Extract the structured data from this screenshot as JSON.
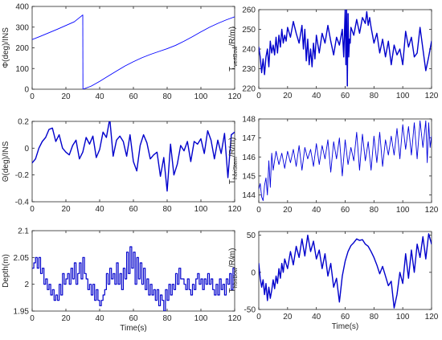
{
  "chart_data": [
    {
      "type": "line",
      "ylabel": "Φ(deg)/INS",
      "xlabel": "",
      "xlim": [
        0,
        120
      ],
      "ylim": [
        0,
        400
      ],
      "xticks": [
        "0",
        "20",
        "40",
        "60",
        "80",
        "100",
        "120"
      ],
      "yticks": [
        "0",
        "100",
        "200",
        "300",
        "400"
      ],
      "color": "#0000ff",
      "line_width": 0.9,
      "series": [
        {
          "x": [
            0,
            5,
            10,
            15,
            20,
            25,
            29.9,
            30,
            30.1,
            35,
            40,
            45,
            50,
            55,
            60,
            65,
            70,
            75,
            80,
            85,
            90,
            95,
            100,
            105,
            110,
            115,
            120
          ],
          "values": [
            240,
            256,
            273,
            290,
            308,
            326,
            358,
            359,
            0,
            15,
            38,
            63,
            88,
            112,
            133,
            152,
            168,
            182,
            196,
            212,
            232,
            254,
            277,
            299,
            318,
            335,
            350
          ]
        }
      ]
    },
    {
      "type": "line",
      "ylabel": "T",
      "ylabel_sub": "vertBow",
      "ylabel_tail": "/R/m)",
      "xlabel": "",
      "xlim": [
        0,
        120
      ],
      "ylim": [
        220,
        260
      ],
      "xticks": [
        "0",
        "20",
        "40",
        "60",
        "80",
        "100",
        "120"
      ],
      "yticks": [
        "220",
        "230",
        "240",
        "250",
        "260"
      ],
      "color": "#0000cc",
      "line_width": 1.4,
      "series": [
        {
          "x": [
            0,
            1,
            2,
            3,
            4,
            5,
            6,
            7,
            8,
            9,
            10,
            11,
            12,
            13,
            14,
            15,
            16,
            17,
            18,
            19,
            20,
            22,
            24,
            26,
            28,
            30,
            31,
            32,
            33,
            34,
            35,
            36,
            37,
            38,
            39,
            40,
            42,
            44,
            46,
            48,
            50,
            52,
            54,
            56,
            58,
            59,
            60,
            60.5,
            61,
            61.5,
            62,
            62.5,
            63,
            63.5,
            64,
            66,
            68,
            70,
            72,
            74,
            75,
            76,
            77,
            78,
            80,
            82,
            84,
            86,
            88,
            90,
            92,
            94,
            96,
            98,
            100,
            102,
            104,
            106,
            108,
            110,
            112,
            114,
            116,
            118,
            120
          ],
          "values": [
            241,
            236,
            228,
            235,
            227,
            236,
            240,
            231,
            244,
            238,
            242,
            237,
            246,
            238,
            247,
            241,
            250,
            243,
            247,
            244,
            251,
            246,
            254,
            248,
            243,
            252,
            240,
            250,
            234,
            245,
            232,
            240,
            231,
            243,
            235,
            247,
            238,
            248,
            243,
            252,
            244,
            237,
            246,
            242,
            250,
            236,
            260,
            232,
            260,
            221,
            258,
            236,
            245,
            243,
            251,
            247,
            255,
            248,
            256,
            253,
            259,
            252,
            256,
            251,
            243,
            248,
            238,
            245,
            236,
            244,
            232,
            242,
            237,
            240,
            232,
            249,
            241,
            246,
            236,
            238,
            251,
            240,
            229,
            236,
            244
          ]
        }
      ]
    },
    {
      "type": "line",
      "ylabel": "Θ(deg)/INS",
      "xlabel": "",
      "xlim": [
        0,
        120
      ],
      "ylim": [
        -0.4,
        0.2
      ],
      "xticks": [
        "0",
        "20",
        "40",
        "60",
        "80",
        "100",
        "120"
      ],
      "yticks": [
        "-0.4",
        "-0.2",
        "0",
        "0.2"
      ],
      "color": "#0000cc",
      "line_width": 1.4,
      "series": [
        {
          "x": [
            0,
            2,
            4,
            6,
            8,
            10,
            12,
            14,
            16,
            18,
            20,
            22,
            24,
            26,
            28,
            30,
            32,
            34,
            36,
            38,
            40,
            42,
            44,
            46,
            48,
            50,
            52,
            54,
            56,
            58,
            60,
            62,
            64,
            66,
            68,
            70,
            72,
            74,
            76,
            78,
            80,
            82,
            84,
            86,
            88,
            90,
            92,
            94,
            96,
            98,
            100,
            102,
            104,
            106,
            108,
            110,
            112,
            114,
            116,
            118,
            120
          ],
          "values": [
            -0.11,
            -0.08,
            0.0,
            0.05,
            0.08,
            0.14,
            0.15,
            0.05,
            0.1,
            0.0,
            -0.03,
            -0.05,
            0.02,
            0.06,
            -0.08,
            -0.03,
            0.08,
            0.03,
            0.09,
            -0.07,
            -0.01,
            0.12,
            0.08,
            0.22,
            -0.06,
            0.06,
            0.09,
            0.05,
            -0.06,
            0.1,
            -0.1,
            -0.17,
            0.02,
            0.1,
            0.04,
            -0.08,
            -0.05,
            -0.03,
            -0.21,
            -0.07,
            -0.32,
            0.03,
            -0.2,
            -0.12,
            0.02,
            -0.02,
            0.05,
            -0.1,
            0.05,
            0.03,
            0.07,
            -0.04,
            0.13,
            0.06,
            -0.08,
            0.06,
            -0.04,
            0.11,
            -0.22,
            0.1,
            0.12
          ]
        }
      ]
    },
    {
      "type": "line",
      "ylabel": "T",
      "ylabel_sub": "horiStem",
      "ylabel_tail": "/R/m)",
      "xlabel": "",
      "xlim": [
        0,
        120
      ],
      "ylim": [
        143.6,
        148
      ],
      "xticks": [
        "0",
        "20",
        "40",
        "60",
        "80",
        "100",
        "120"
      ],
      "yticks": [
        "144",
        "145",
        "146",
        "147",
        "148"
      ],
      "color": "#0000dd",
      "line_width": 0.9,
      "series": [
        {
          "x": [
            0,
            1,
            2,
            3,
            4,
            5,
            6,
            7,
            8,
            9,
            10,
            12,
            14,
            16,
            18,
            20,
            22,
            24,
            26,
            28,
            30,
            32,
            34,
            36,
            38,
            40,
            42,
            44,
            46,
            48,
            50,
            52,
            54,
            56,
            58,
            60,
            62,
            64,
            66,
            68,
            70,
            72,
            74,
            76,
            78,
            80,
            82,
            84,
            86,
            88,
            90,
            92,
            94,
            96,
            98,
            100,
            102,
            104,
            106,
            108,
            110,
            112,
            114,
            116,
            117,
            118,
            119,
            120
          ],
          "values": [
            144.3,
            144.6,
            143.9,
            143.7,
            144.5,
            144.9,
            144.0,
            145.8,
            144.4,
            146.2,
            145.3,
            146.3,
            145.6,
            146.2,
            145.4,
            146.3,
            145.7,
            146.4,
            145.5,
            146.6,
            145.3,
            146.5,
            145.9,
            146.4,
            145.5,
            146.7,
            145.6,
            146.6,
            145.9,
            146.9,
            145.2,
            146.8,
            145.9,
            147.0,
            145.0,
            146.9,
            145.6,
            146.5,
            145.8,
            147.3,
            145.3,
            147.2,
            145.8,
            146.8,
            145.3,
            147.1,
            145.7,
            147.3,
            145.5,
            146.9,
            146.1,
            147.1,
            146.1,
            147.5,
            145.9,
            147.7,
            146.4,
            147.6,
            146.1,
            147.8,
            145.9,
            147.9,
            146.5,
            147.9,
            145.7,
            147.8,
            146.5,
            147.1
          ]
        }
      ]
    },
    {
      "type": "line",
      "ylabel": "Depth(m)",
      "xlabel": "Time(s)",
      "xlim": [
        0,
        120
      ],
      "ylim": [
        1.95,
        2.1
      ],
      "xticks": [
        "0",
        "20",
        "40",
        "60",
        "80",
        "100",
        "120"
      ],
      "yticks": [
        "1.95",
        "2",
        "2.05",
        "2.1"
      ],
      "color": "#0000cc",
      "line_width": 1.2,
      "step": true,
      "series": [
        {
          "x": [
            0,
            1,
            2,
            3,
            4,
            5,
            6,
            7,
            8,
            9,
            10,
            11,
            12,
            13,
            14,
            15,
            16,
            17,
            18,
            19,
            20,
            21,
            22,
            23,
            24,
            25,
            26,
            27,
            28,
            29,
            30,
            31,
            32,
            33,
            34,
            35,
            36,
            37,
            38,
            39,
            40,
            41,
            42,
            43,
            44,
            45,
            46,
            47,
            48,
            49,
            50,
            51,
            52,
            53,
            54,
            55,
            56,
            57,
            58,
            59,
            60,
            61,
            62,
            63,
            64,
            65,
            66,
            67,
            68,
            69,
            70,
            71,
            72,
            73,
            74,
            75,
            76,
            77,
            78,
            79,
            80,
            81,
            82,
            83,
            84,
            85,
            86,
            87,
            88,
            89,
            90,
            91,
            92,
            93,
            94,
            95,
            96,
            97,
            98,
            99,
            100,
            101,
            102,
            103,
            104,
            105,
            106,
            107,
            108,
            109,
            110,
            111,
            112,
            113,
            114,
            115,
            116,
            117,
            118,
            119,
            120
          ],
          "values": [
            2.03,
            2.04,
            2.05,
            2.03,
            2.05,
            2.02,
            2.03,
            2.0,
            2.01,
            1.99,
            2.0,
            1.98,
            1.99,
            1.97,
            1.98,
            1.97,
            2.0,
            1.98,
            2.02,
            2.0,
            2.01,
            2.02,
            2.0,
            2.03,
            2.01,
            2.04,
            2.0,
            2.02,
            2.04,
            2.01,
            2.05,
            2.02,
            2.01,
            1.99,
            2.0,
            1.98,
            2.0,
            1.97,
            1.99,
            1.97,
            1.96,
            1.97,
            1.98,
            1.99,
            2.02,
            2.0,
            2.03,
            2.01,
            2.02,
            2.0,
            2.04,
            2.0,
            2.02,
            1.99,
            2.03,
            2.01,
            2.06,
            2.02,
            2.07,
            2.03,
            2.06,
            2.0,
            2.05,
            2.01,
            2.04,
            2.0,
            2.03,
            1.99,
            2.01,
            1.98,
            2.0,
            1.98,
            1.99,
            1.97,
            1.99,
            1.96,
            1.98,
            1.97,
            1.95,
            1.99,
            1.97,
            2.0,
            1.98,
            2.0,
            1.99,
            2.02,
            2.0,
            2.03,
            2.01,
            2.01,
            2.0,
            1.99,
            2.01,
            1.99,
            1.98,
            2.0,
            1.99,
            2.01,
            2.02,
            2.0,
            2.01,
            1.99,
            2.01,
            2.0,
            2.02,
            2.0,
            2.01,
            1.99,
            1.98,
            2.0,
            1.98,
            2.01,
            1.99,
            2.0,
            1.98,
            2.01,
            2.0,
            2.02,
            1.99,
            2.03,
            2.01
          ]
        }
      ]
    },
    {
      "type": "line",
      "ylabel": "T",
      "ylabel_sub": "horiBow",
      "ylabel_tail": "/R/m)",
      "xlabel": "Time(s)",
      "xlim": [
        0,
        120
      ],
      "ylim": [
        -50,
        55
      ],
      "xticks": [
        "0",
        "20",
        "40",
        "60",
        "80",
        "100",
        "120"
      ],
      "yticks": [
        "-50",
        "0",
        "50"
      ],
      "color": "#0000cc",
      "line_width": 1.4,
      "series": [
        {
          "x": [
            0,
            1,
            2,
            3,
            4,
            5,
            6,
            7,
            8,
            9,
            10,
            11,
            12,
            13,
            14,
            15,
            16,
            17,
            18,
            20,
            22,
            24,
            26,
            28,
            30,
            32,
            34,
            36,
            38,
            40,
            42,
            44,
            46,
            48,
            50,
            52,
            54,
            56,
            58,
            60,
            62,
            64,
            66,
            68,
            70,
            72,
            74,
            76,
            78,
            80,
            82,
            84,
            86,
            88,
            90,
            92,
            94,
            96,
            98,
            100,
            102,
            104,
            106,
            108,
            110,
            112,
            114,
            116,
            118,
            120
          ],
          "values": [
            12,
            -8,
            -20,
            -10,
            -30,
            -15,
            -38,
            -20,
            -35,
            -24,
            -10,
            -22,
            -5,
            -15,
            5,
            -8,
            12,
            0,
            18,
            5,
            28,
            10,
            35,
            20,
            45,
            22,
            50,
            28,
            42,
            18,
            30,
            5,
            25,
            -5,
            12,
            -20,
            -8,
            -40,
            -5,
            15,
            28,
            36,
            40,
            45,
            43,
            44,
            38,
            35,
            28,
            20,
            10,
            -2,
            8,
            -5,
            -18,
            -12,
            -48,
            -30,
            0,
            -15,
            25,
            -8,
            30,
            0,
            38,
            20,
            48,
            18,
            52,
            38
          ]
        }
      ]
    }
  ]
}
